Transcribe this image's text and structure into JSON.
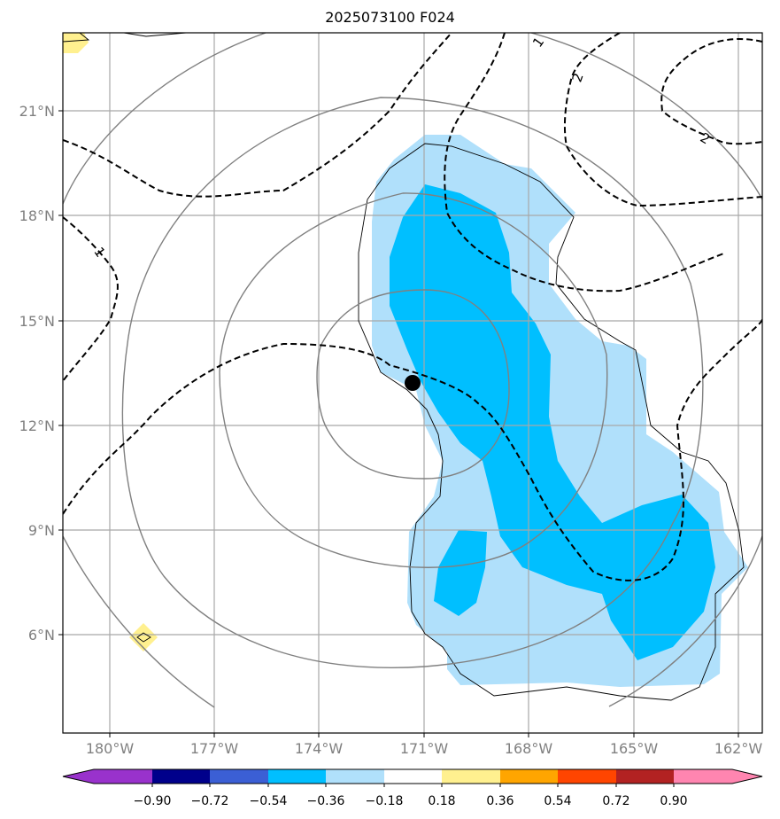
{
  "title": "2025073100 F024",
  "map": {
    "lat_ticks": [
      "21°N",
      "18°N",
      "15°N",
      "12°N",
      "9°N",
      "6°N"
    ],
    "lon_ticks": [
      "180°W",
      "177°W",
      "174°W",
      "171°W",
      "168°W",
      "165°W",
      "162°W"
    ],
    "grid": true,
    "storm_center": {
      "lat": "13.2°N",
      "lon": "171.3°W",
      "symbol": "filled-black-circle"
    },
    "contour_labels": [
      "1",
      "2",
      "1",
      "2"
    ],
    "fill_colors": {
      "light_blue": "#b0e0fb",
      "blue": "#00bfff",
      "light_yellow": "#fff08f"
    }
  },
  "colorbar": {
    "labels": [
      "−0.90",
      "−0.72",
      "−0.54",
      "−0.36",
      "−0.18",
      "0.18",
      "0.36",
      "0.54",
      "0.72",
      "0.90"
    ],
    "colors": [
      "#9932cc",
      "#00008b",
      "#3b5fd5",
      "#00bfff",
      "#b0e0fb",
      "#ffffff",
      "#fff08f",
      "#ffa500",
      "#ff4500",
      "#b22222",
      "#ff85b0"
    ]
  }
}
